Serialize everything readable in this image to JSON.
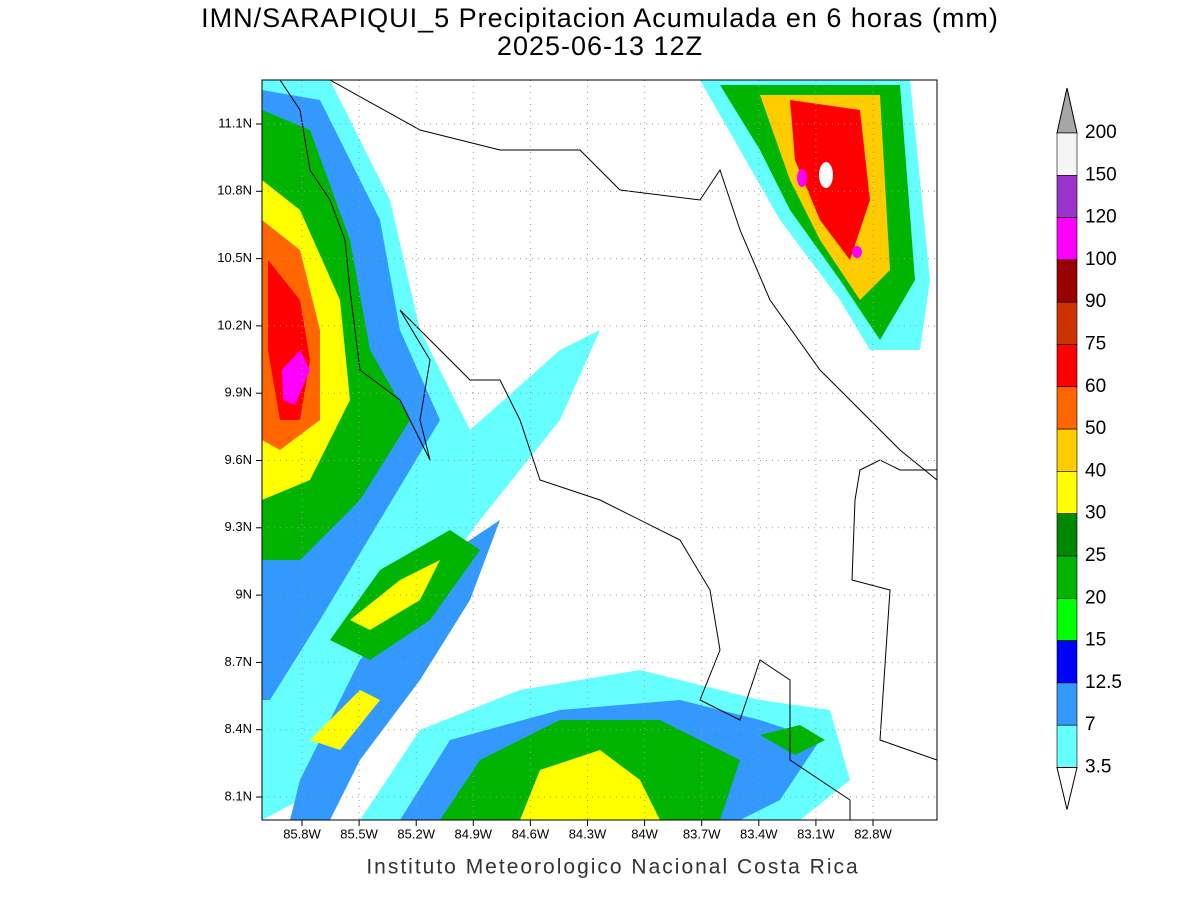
{
  "title": [
    "IMN/SARAPIQUI_5 Precipitacion Acumulada en 6 horas (mm)",
    "2025-06-13 12Z"
  ],
  "lat_labels": [
    "11.1N",
    "10.8N",
    "10.5N",
    "10.2N",
    "9.9N",
    "9.6N",
    "9.3N",
    "9N",
    "8.7N",
    "8.4N",
    "8.1N"
  ],
  "lon_labels": [
    "85.8W",
    "85.5W",
    "85.2W",
    "84.9W",
    "84.6W",
    "84.3W",
    "84W",
    "83.7W",
    "83.4W",
    "83.1W",
    "82.8W"
  ],
  "colorbar": {
    "levels": [
      200,
      150,
      120,
      100,
      90,
      75,
      60,
      50,
      40,
      30,
      25,
      20,
      15,
      12.5,
      7,
      3.5
    ],
    "colors": [
      "#f5f5f5",
      "#9933cc",
      "#ff00ff",
      "#990000",
      "#cc3300",
      "#ff0000",
      "#ff6600",
      "#ffcc00",
      "#ffff00",
      "#008800",
      "#00b400",
      "#00ff00",
      "#0000ff",
      "#3399ff",
      "#66ffff"
    ],
    "over_color": "#a6a6a6",
    "under_color": "#ffffff"
  },
  "credit": "Instituto Meteorologico Nacional Costa Rica"
}
